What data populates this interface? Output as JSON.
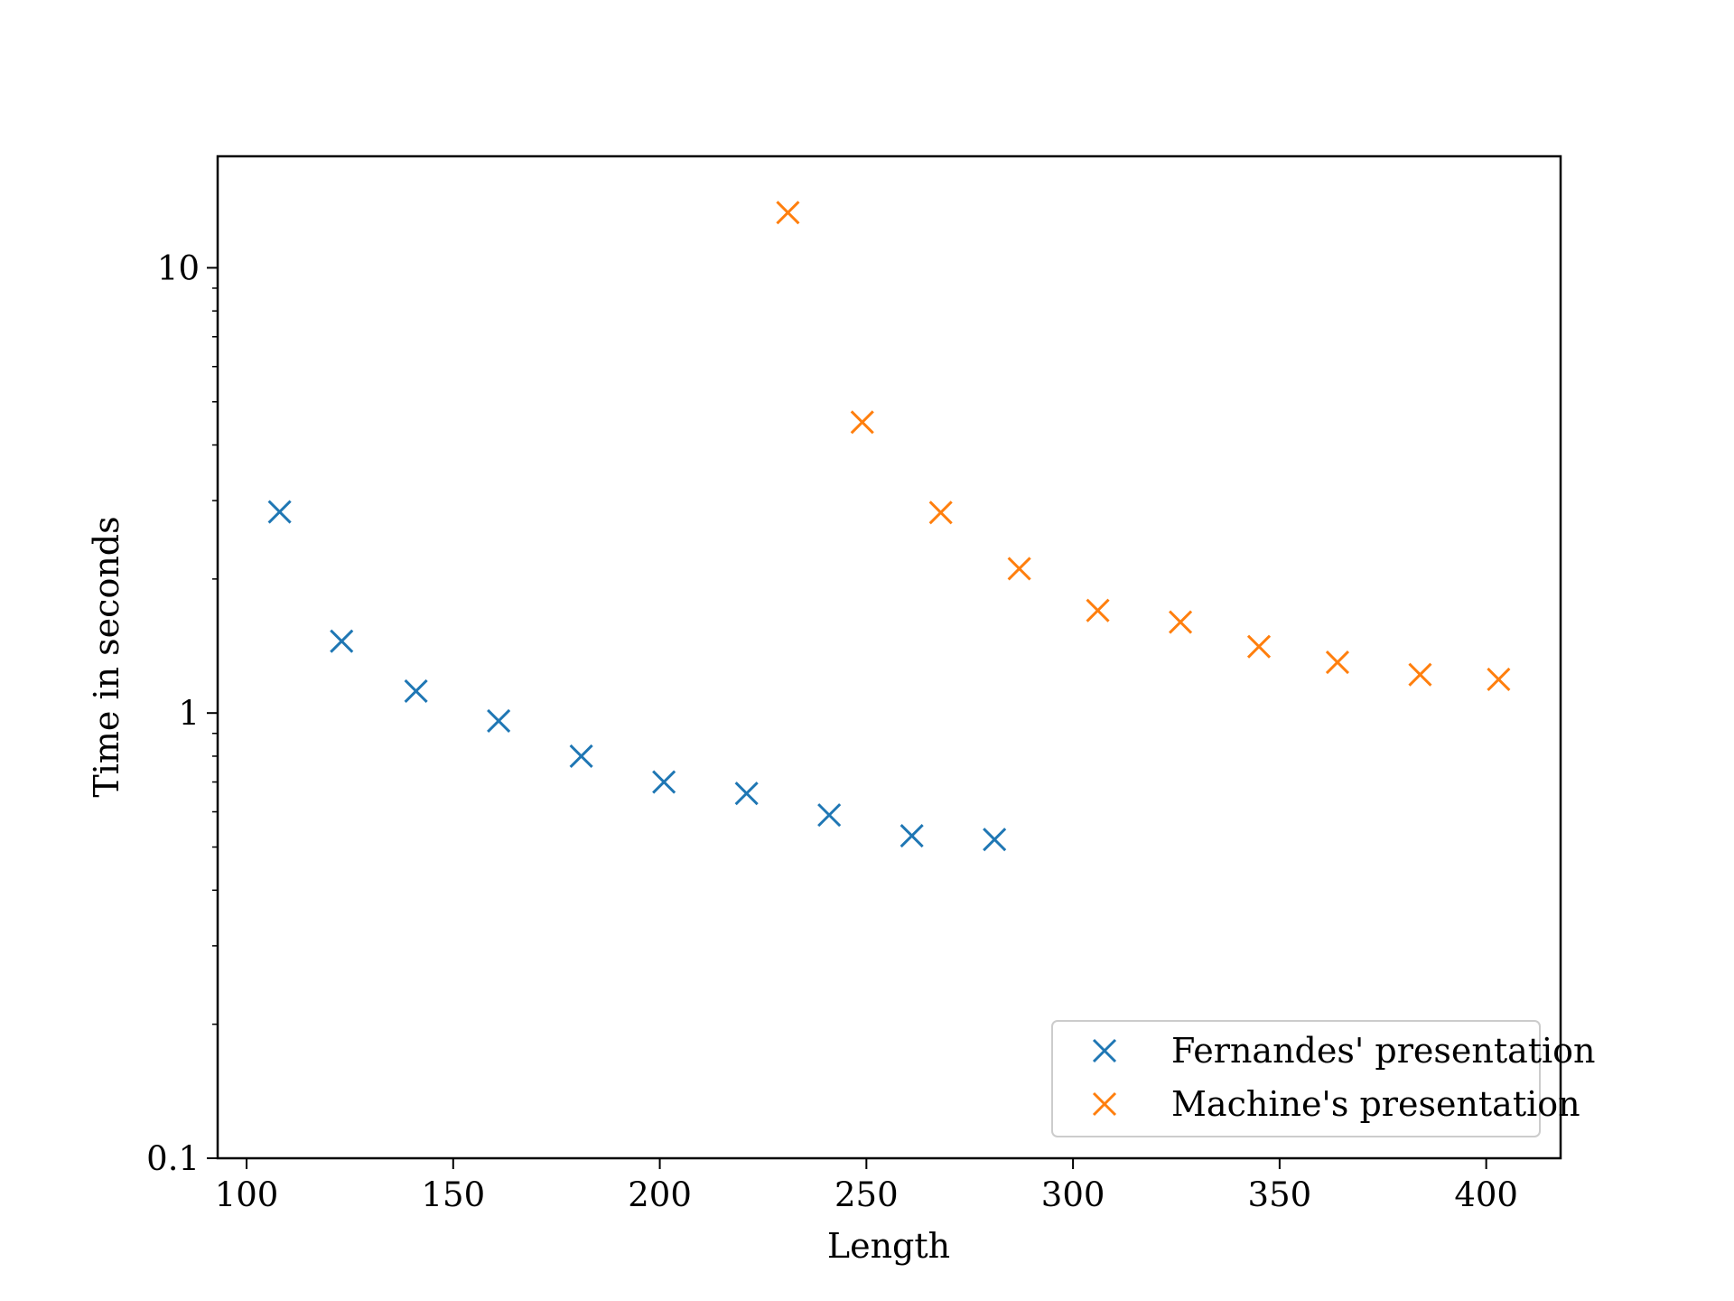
{
  "chart_data": {
    "type": "scatter",
    "title": "",
    "xlabel": "Length",
    "ylabel": "Time in seconds",
    "xlim": [
      93,
      418
    ],
    "ylim": [
      0.1,
      17.8
    ],
    "yscale": "log",
    "grid": false,
    "legend_position": "lower-right",
    "marker": "x",
    "x_ticks": [
      100,
      150,
      200,
      250,
      300,
      350,
      400
    ],
    "x_tick_labels": [
      "100",
      "150",
      "200",
      "250",
      "300",
      "350",
      "400"
    ],
    "y_ticks": [
      0.1,
      1,
      10
    ],
    "y_tick_labels": [
      "0.1",
      "1",
      "10"
    ],
    "series": [
      {
        "name": "Fernandes' presentation",
        "color": "#1f77b4",
        "x": [
          108,
          123,
          141,
          161,
          181,
          201,
          221,
          241,
          261,
          281
        ],
        "y": [
          2.83,
          1.45,
          1.12,
          0.96,
          0.8,
          0.7,
          0.66,
          0.59,
          0.53,
          0.52
        ]
      },
      {
        "name": "Machine's presentation",
        "color": "#ff7f0e",
        "x": [
          231,
          249,
          268,
          287,
          306,
          326,
          345,
          364,
          384,
          403
        ],
        "y": [
          13.3,
          4.5,
          2.82,
          2.11,
          1.7,
          1.6,
          1.41,
          1.3,
          1.22,
          1.19
        ]
      }
    ]
  }
}
